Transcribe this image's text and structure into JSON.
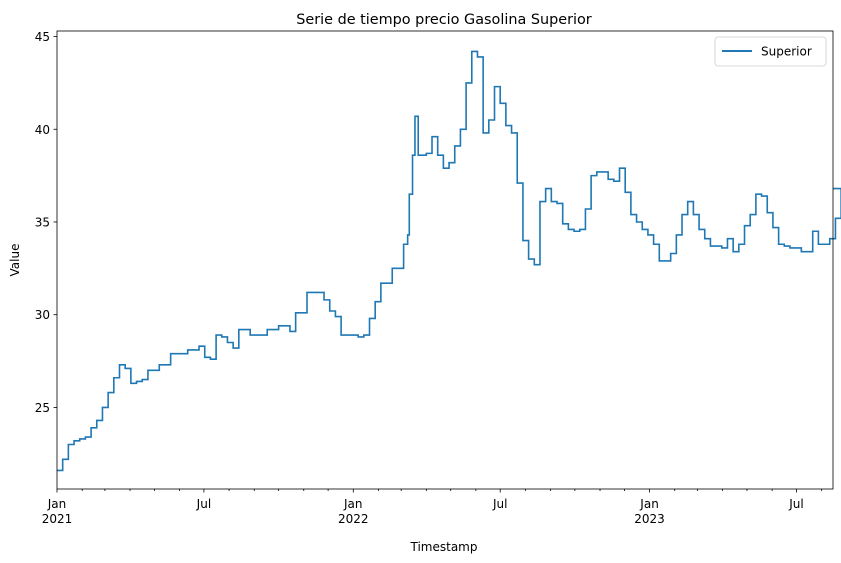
{
  "chart_data": {
    "type": "line",
    "title": "Serie de tiempo precio Gasolina Superior",
    "xlabel": "Timestamp",
    "ylabel": "Value",
    "xlim": [
      "2021-01-01",
      "2023-08-15"
    ],
    "ylim": [
      20.6,
      45.3
    ],
    "yticks": [
      25,
      30,
      35,
      40,
      45
    ],
    "xticks_major": [
      {
        "date": "2021-01-01",
        "label": "Jan",
        "sublabel": "2021"
      },
      {
        "date": "2021-07-01",
        "label": "Jul",
        "sublabel": ""
      },
      {
        "date": "2022-01-01",
        "label": "Jan",
        "sublabel": "2022"
      },
      {
        "date": "2022-07-01",
        "label": "Jul",
        "sublabel": ""
      },
      {
        "date": "2023-01-01",
        "label": "Jan",
        "sublabel": "2023"
      },
      {
        "date": "2023-07-01",
        "label": "Jul",
        "sublabel": ""
      }
    ],
    "xticks_minor_monthly": true,
    "grid": false,
    "legend": {
      "position": "top-right",
      "entries": [
        "Superior"
      ]
    },
    "colors": {
      "Superior": "#1f77b4"
    },
    "step": true,
    "series": [
      {
        "name": "Superior",
        "points": [
          [
            "2021-01-01",
            21.6
          ],
          [
            "2021-01-08",
            22.2
          ],
          [
            "2021-01-15",
            23.0
          ],
          [
            "2021-01-22",
            23.2
          ],
          [
            "2021-01-29",
            23.3
          ],
          [
            "2021-02-05",
            23.4
          ],
          [
            "2021-02-12",
            23.9
          ],
          [
            "2021-02-19",
            24.3
          ],
          [
            "2021-02-26",
            25.0
          ],
          [
            "2021-03-05",
            25.8
          ],
          [
            "2021-03-12",
            26.6
          ],
          [
            "2021-03-19",
            27.3
          ],
          [
            "2021-03-26",
            27.1
          ],
          [
            "2021-04-02",
            26.3
          ],
          [
            "2021-04-09",
            26.4
          ],
          [
            "2021-04-16",
            26.5
          ],
          [
            "2021-04-23",
            27.0
          ],
          [
            "2021-04-30",
            27.0
          ],
          [
            "2021-05-07",
            27.3
          ],
          [
            "2021-05-14",
            27.3
          ],
          [
            "2021-05-21",
            27.9
          ],
          [
            "2021-05-28",
            27.9
          ],
          [
            "2021-06-04",
            27.9
          ],
          [
            "2021-06-11",
            28.1
          ],
          [
            "2021-06-18",
            28.1
          ],
          [
            "2021-06-25",
            28.3
          ],
          [
            "2021-07-02",
            27.7
          ],
          [
            "2021-07-09",
            27.6
          ],
          [
            "2021-07-16",
            28.9
          ],
          [
            "2021-07-23",
            28.8
          ],
          [
            "2021-07-30",
            28.5
          ],
          [
            "2021-08-06",
            28.2
          ],
          [
            "2021-08-13",
            29.2
          ],
          [
            "2021-08-20",
            29.2
          ],
          [
            "2021-08-27",
            28.9
          ],
          [
            "2021-09-03",
            28.9
          ],
          [
            "2021-09-10",
            28.9
          ],
          [
            "2021-09-17",
            29.2
          ],
          [
            "2021-09-24",
            29.2
          ],
          [
            "2021-10-01",
            29.4
          ],
          [
            "2021-10-08",
            29.4
          ],
          [
            "2021-10-15",
            29.1
          ],
          [
            "2021-10-22",
            30.1
          ],
          [
            "2021-10-29",
            30.1
          ],
          [
            "2021-11-05",
            31.2
          ],
          [
            "2021-11-12",
            31.2
          ],
          [
            "2021-11-19",
            31.2
          ],
          [
            "2021-11-26",
            30.8
          ],
          [
            "2021-12-03",
            30.2
          ],
          [
            "2021-12-10",
            29.9
          ],
          [
            "2021-12-17",
            28.9
          ],
          [
            "2021-12-24",
            28.9
          ],
          [
            "2021-12-31",
            28.9
          ],
          [
            "2022-01-07",
            28.8
          ],
          [
            "2022-01-14",
            28.9
          ],
          [
            "2022-01-21",
            29.8
          ],
          [
            "2022-01-28",
            30.7
          ],
          [
            "2022-02-04",
            31.7
          ],
          [
            "2022-02-11",
            31.7
          ],
          [
            "2022-02-18",
            32.5
          ],
          [
            "2022-02-25",
            32.5
          ],
          [
            "2022-03-04",
            33.8
          ],
          [
            "2022-03-09",
            34.3
          ],
          [
            "2022-03-11",
            36.5
          ],
          [
            "2022-03-15",
            38.6
          ],
          [
            "2022-03-18",
            40.7
          ],
          [
            "2022-03-22",
            38.6
          ],
          [
            "2022-03-25",
            38.6
          ],
          [
            "2022-04-01",
            38.7
          ],
          [
            "2022-04-08",
            39.6
          ],
          [
            "2022-04-15",
            38.6
          ],
          [
            "2022-04-22",
            37.9
          ],
          [
            "2022-04-29",
            38.2
          ],
          [
            "2022-05-06",
            39.1
          ],
          [
            "2022-05-13",
            40.0
          ],
          [
            "2022-05-20",
            42.5
          ],
          [
            "2022-05-27",
            44.2
          ],
          [
            "2022-06-03",
            43.9
          ],
          [
            "2022-06-10",
            39.8
          ],
          [
            "2022-06-17",
            40.5
          ],
          [
            "2022-06-24",
            42.3
          ],
          [
            "2022-07-01",
            41.4
          ],
          [
            "2022-07-08",
            40.2
          ],
          [
            "2022-07-15",
            39.8
          ],
          [
            "2022-07-22",
            37.1
          ],
          [
            "2022-07-29",
            34.0
          ],
          [
            "2022-08-05",
            33.0
          ],
          [
            "2022-08-12",
            32.7
          ],
          [
            "2022-08-19",
            36.1
          ],
          [
            "2022-08-26",
            36.8
          ],
          [
            "2022-09-02",
            36.1
          ],
          [
            "2022-09-09",
            36.0
          ],
          [
            "2022-09-16",
            34.9
          ],
          [
            "2022-09-23",
            34.6
          ],
          [
            "2022-09-30",
            34.5
          ],
          [
            "2022-10-07",
            34.6
          ],
          [
            "2022-10-14",
            35.7
          ],
          [
            "2022-10-21",
            37.5
          ],
          [
            "2022-10-28",
            37.7
          ],
          [
            "2022-11-04",
            37.7
          ],
          [
            "2022-11-11",
            37.3
          ],
          [
            "2022-11-18",
            37.2
          ],
          [
            "2022-11-25",
            37.9
          ],
          [
            "2022-12-02",
            36.6
          ],
          [
            "2022-12-09",
            35.4
          ],
          [
            "2022-12-16",
            35.0
          ],
          [
            "2022-12-23",
            34.6
          ],
          [
            "2022-12-30",
            34.3
          ],
          [
            "2023-01-06",
            33.8
          ],
          [
            "2023-01-13",
            32.9
          ],
          [
            "2023-01-20",
            32.9
          ],
          [
            "2023-01-27",
            33.3
          ],
          [
            "2023-02-03",
            34.3
          ],
          [
            "2023-02-10",
            35.4
          ],
          [
            "2023-02-17",
            36.1
          ],
          [
            "2023-02-24",
            35.4
          ],
          [
            "2023-03-03",
            34.6
          ],
          [
            "2023-03-10",
            34.1
          ],
          [
            "2023-03-17",
            33.7
          ],
          [
            "2023-03-24",
            33.7
          ],
          [
            "2023-03-31",
            33.6
          ],
          [
            "2023-04-07",
            34.1
          ],
          [
            "2023-04-14",
            33.4
          ],
          [
            "2023-04-21",
            33.8
          ],
          [
            "2023-04-28",
            34.8
          ],
          [
            "2023-05-05",
            35.4
          ],
          [
            "2023-05-12",
            36.5
          ],
          [
            "2023-05-19",
            36.4
          ],
          [
            "2023-05-26",
            35.5
          ],
          [
            "2023-06-02",
            34.7
          ],
          [
            "2023-06-09",
            33.8
          ],
          [
            "2023-06-16",
            33.7
          ],
          [
            "2023-06-23",
            33.6
          ],
          [
            "2023-06-30",
            33.6
          ],
          [
            "2023-07-07",
            33.4
          ],
          [
            "2023-07-14",
            33.4
          ],
          [
            "2023-07-21",
            34.5
          ],
          [
            "2023-07-28",
            33.8
          ],
          [
            "2023-08-04",
            33.8
          ],
          [
            "2023-08-11",
            34.1
          ],
          [
            "2023-08-18",
            35.2
          ],
          [
            "2023-08-25",
            36.8
          ]
        ]
      }
    ]
  }
}
